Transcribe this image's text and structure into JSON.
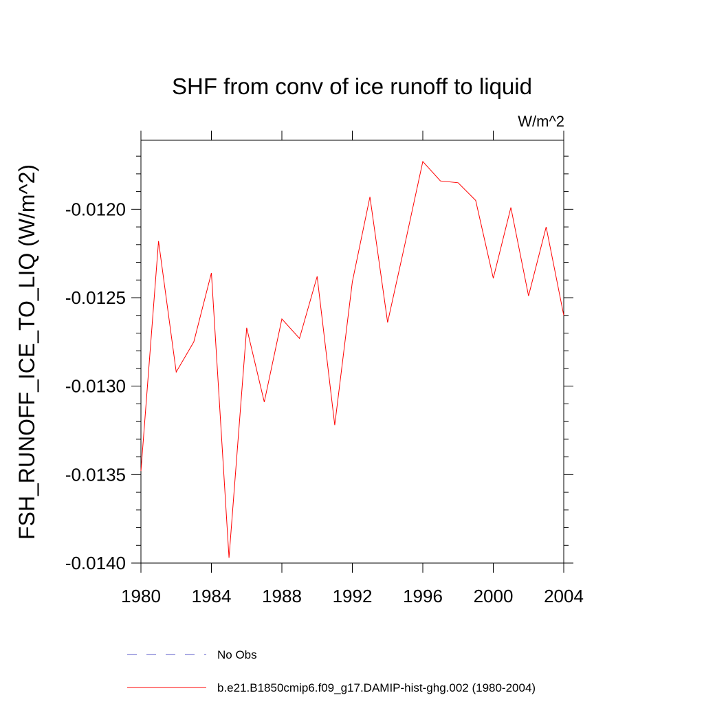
{
  "chart_data": {
    "type": "line",
    "title": "SHF from conv of ice runoff to liquid",
    "units_label": "W/m^2",
    "ylabel": "FSH_RUNOFF_ICE_TO_LIQ  (W/m^2)",
    "xlabel": "",
    "xlim": [
      1980,
      2004
    ],
    "ylim": [
      -0.014,
      -0.01161
    ],
    "x_ticks": [
      1980,
      1984,
      1988,
      1992,
      1996,
      2000,
      2004
    ],
    "x_tick_labels": [
      "1980",
      "1984",
      "1988",
      "1992",
      "1996",
      "2000",
      "2004"
    ],
    "y_ticks": [
      -0.014,
      -0.0135,
      -0.013,
      -0.0125,
      -0.012
    ],
    "y_tick_labels": [
      "-0.0140",
      "-0.0135",
      "-0.0130",
      "-0.0125",
      "-0.0120"
    ],
    "grid": false,
    "series": [
      {
        "name": "b.e21.B1850cmip6.f09_g17.DAMIP-hist-ghg.002 (1980-2004)",
        "color": "#ff0000",
        "dash": "solid",
        "x": [
          1980,
          1981,
          1982,
          1983,
          1984,
          1985,
          1986,
          1987,
          1988,
          1989,
          1990,
          1991,
          1992,
          1993,
          1994,
          1995,
          1996,
          1997,
          1998,
          1999,
          2000,
          2001,
          2002,
          2003,
          2004
        ],
        "y": [
          -0.01348,
          -0.01218,
          -0.01292,
          -0.01275,
          -0.01236,
          -0.01397,
          -0.01267,
          -0.01309,
          -0.01262,
          -0.01273,
          -0.01238,
          -0.01322,
          -0.01241,
          -0.01193,
          -0.01264,
          -0.01219,
          -0.01173,
          -0.01184,
          -0.01185,
          -0.01195,
          -0.01239,
          -0.01199,
          -0.01249,
          -0.0121,
          -0.0126
        ]
      }
    ],
    "legend": {
      "placement": "bottom",
      "entries": [
        {
          "label": "No Obs",
          "color": "#5a5ac8",
          "dash": "dashed"
        },
        {
          "label": "b.e21.B1850cmip6.f09_g17.DAMIP-hist-ghg.002 (1980-2004)",
          "color": "#ff0000",
          "dash": "solid"
        }
      ]
    }
  }
}
